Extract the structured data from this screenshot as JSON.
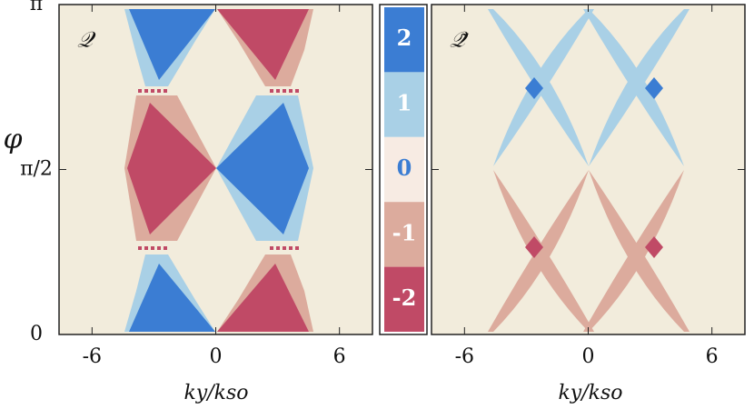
{
  "chart_data": [
    {
      "type": "region",
      "label": "𝒬",
      "xlabel": "ky/kso",
      "ylabel": "φ",
      "xlim": [
        -7.6,
        7.6
      ],
      "ylim": [
        0,
        3.1416
      ],
      "xticks": [
        -6,
        0,
        6
      ],
      "yticks": [
        0,
        {
          "value": 1.5708,
          "label": "π/2"
        },
        {
          "value": 3.1416,
          "label": "π"
        }
      ]
    },
    {
      "type": "colorbar",
      "levels": [
        2,
        1,
        0,
        -1,
        -2
      ],
      "colors": [
        "#3b7dd3",
        "#a9d0e6",
        "#f7ebe3",
        "#dcab9d",
        "#c04a66"
      ]
    },
    {
      "type": "region",
      "label": "𝒬̃",
      "xlabel": "ky/kso",
      "xlim": [
        -7.6,
        7.6
      ],
      "xticks": [
        -6,
        0,
        6
      ]
    }
  ]
}
